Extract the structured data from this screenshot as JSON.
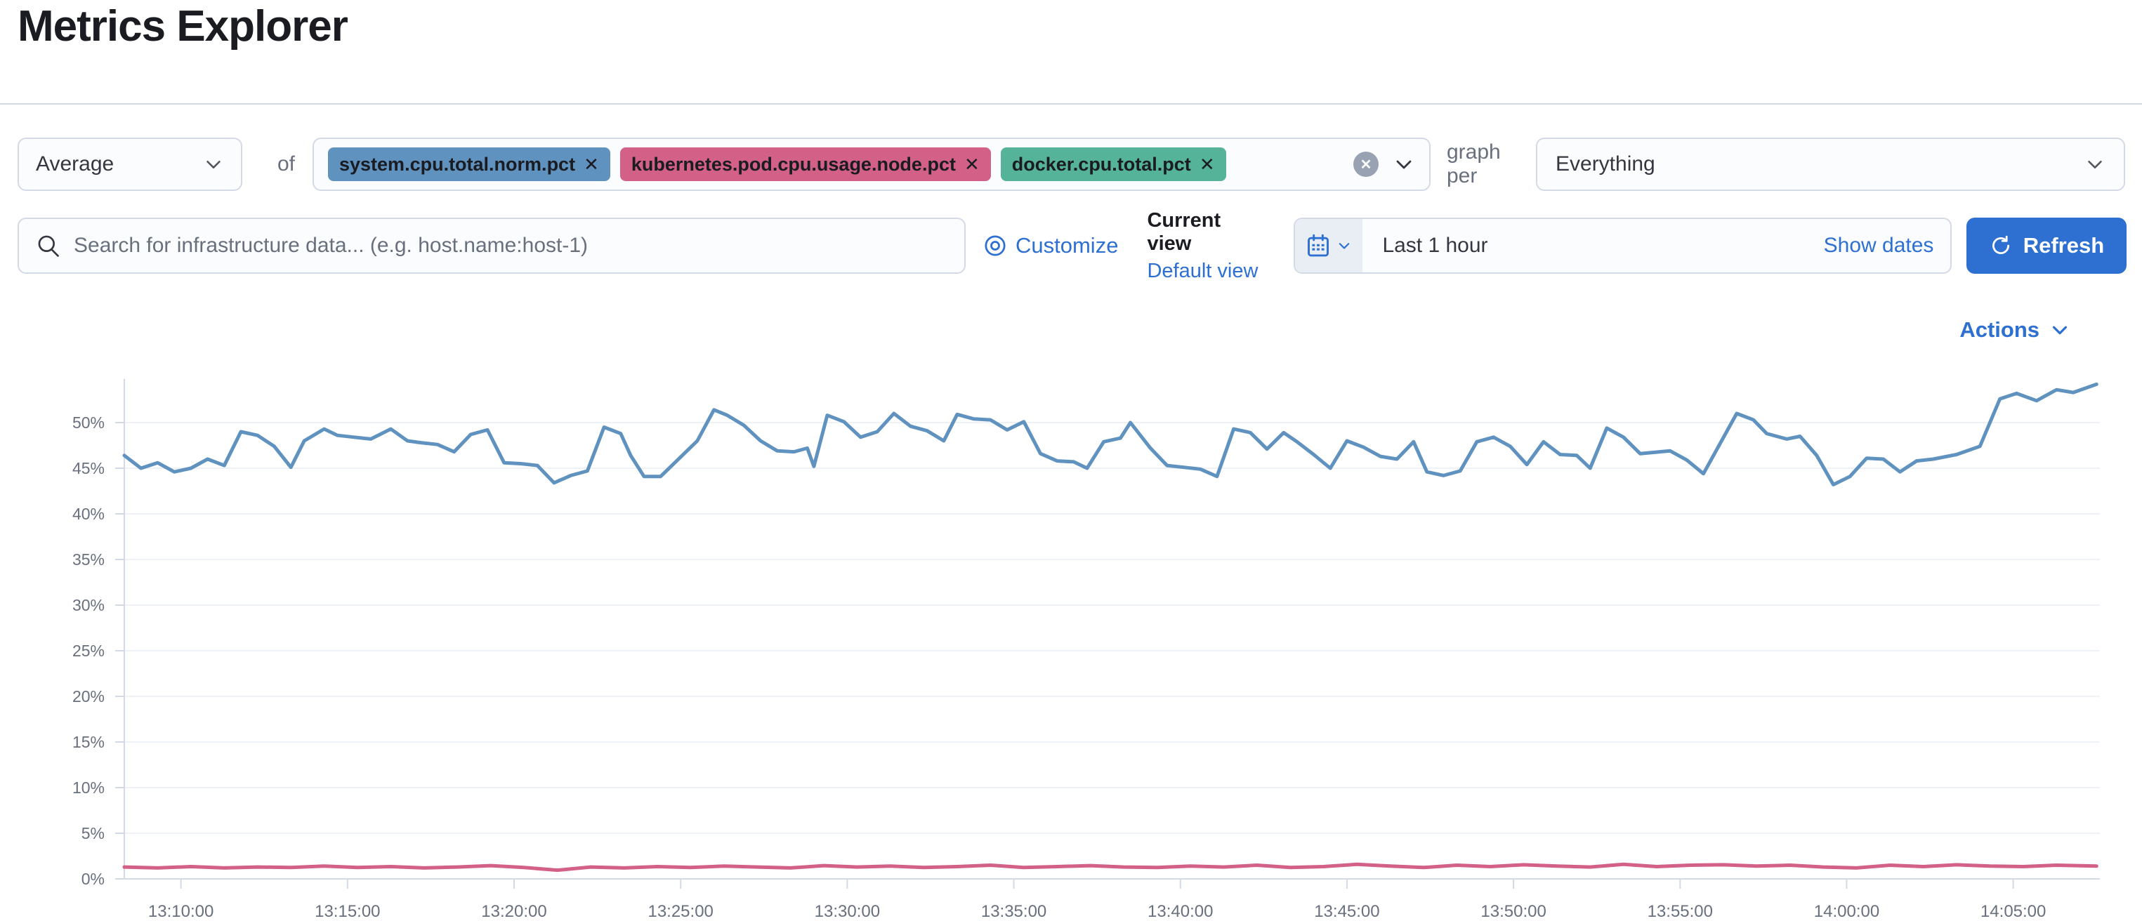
{
  "page_title": "Metrics Explorer",
  "toolbar": {
    "aggregation_value": "Average",
    "of_label": "of",
    "metric_tags": [
      {
        "label": "system.cpu.total.norm.pct",
        "color": "#6092c0"
      },
      {
        "label": "kubernetes.pod.cpu.usage.node.pct",
        "color": "#d36086"
      },
      {
        "label": "docker.cpu.total.pct",
        "color": "#54b399"
      }
    ],
    "remove_glyph": "✕",
    "clear_glyph": "✕",
    "graph_per_label": "graph per",
    "group_by_value": "Everything"
  },
  "search_bar": {
    "placeholder": "Search for infrastructure data... (e.g. host.name:host-1)",
    "customize_label": "Customize",
    "current_view_label": "Current view",
    "default_view_label": "Default view"
  },
  "time_picker": {
    "value": "Last 1 hour",
    "show_dates_label": "Show dates",
    "refresh_label": "Refresh"
  },
  "actions_label": "Actions",
  "colors": {
    "primary_blue": "#2e6fd2",
    "series_blue": "#6092c0",
    "series_pink": "#d36086",
    "tag_green": "#54b399",
    "text_dark": "#343741",
    "text_gray": "#69707d",
    "border": "#d3dae6"
  },
  "chart_data": {
    "type": "line",
    "title": "",
    "xlabel": "",
    "ylabel": "",
    "grid": true,
    "legend": "none",
    "y_axis": {
      "min": 0,
      "max": 54.8,
      "unit": "%",
      "ticks": [
        {
          "value": 0,
          "label": "0%"
        },
        {
          "value": 5,
          "label": "5%"
        },
        {
          "value": 10,
          "label": "10%"
        },
        {
          "value": 15,
          "label": "15%"
        },
        {
          "value": 20,
          "label": "20%"
        },
        {
          "value": 25,
          "label": "25%"
        },
        {
          "value": 30,
          "label": "30%"
        },
        {
          "value": 35,
          "label": "35%"
        },
        {
          "value": 40,
          "label": "40%"
        },
        {
          "value": 45,
          "label": "45%"
        },
        {
          "value": 50,
          "label": "50%"
        }
      ]
    },
    "x_axis": {
      "start_min": 8.3,
      "end_min": 67.6,
      "note": "minutes after 13:00, range ~13:08:20 to ~14:07:40",
      "ticks": [
        {
          "min": 10,
          "label": "13:10:00"
        },
        {
          "min": 15,
          "label": "13:15:00"
        },
        {
          "min": 20,
          "label": "13:20:00"
        },
        {
          "min": 25,
          "label": "13:25:00"
        },
        {
          "min": 30,
          "label": "13:30:00"
        },
        {
          "min": 35,
          "label": "13:35:00"
        },
        {
          "min": 40,
          "label": "13:40:00"
        },
        {
          "min": 45,
          "label": "13:45:00"
        },
        {
          "min": 50,
          "label": "13:50:00"
        },
        {
          "min": 55,
          "label": "13:55:00"
        },
        {
          "min": 60,
          "label": "14:00:00"
        },
        {
          "min": 65,
          "label": "14:05:00"
        }
      ]
    },
    "series": [
      {
        "name": "system.cpu.total.norm.pct",
        "color": "#6092c0",
        "points": [
          [
            8.3,
            46.4
          ],
          [
            8.8,
            45.0
          ],
          [
            9.3,
            45.6
          ],
          [
            9.8,
            44.6
          ],
          [
            10.3,
            45.0
          ],
          [
            10.8,
            46.0
          ],
          [
            11.3,
            45.3
          ],
          [
            11.8,
            49.0
          ],
          [
            12.3,
            48.6
          ],
          [
            12.8,
            47.4
          ],
          [
            13.3,
            45.1
          ],
          [
            13.7,
            48.0
          ],
          [
            14.3,
            49.3
          ],
          [
            14.7,
            48.6
          ],
          [
            15.2,
            48.4
          ],
          [
            15.7,
            48.2
          ],
          [
            16.3,
            49.3
          ],
          [
            16.8,
            48.0
          ],
          [
            17.2,
            47.8
          ],
          [
            17.7,
            47.6
          ],
          [
            18.2,
            46.8
          ],
          [
            18.7,
            48.7
          ],
          [
            19.2,
            49.2
          ],
          [
            19.7,
            45.6
          ],
          [
            20.2,
            45.5
          ],
          [
            20.7,
            45.3
          ],
          [
            21.2,
            43.4
          ],
          [
            21.7,
            44.2
          ],
          [
            22.2,
            44.7
          ],
          [
            22.7,
            49.5
          ],
          [
            23.2,
            48.8
          ],
          [
            23.5,
            46.4
          ],
          [
            23.9,
            44.1
          ],
          [
            24.4,
            44.1
          ],
          [
            25.5,
            48.0
          ],
          [
            26.0,
            51.4
          ],
          [
            26.4,
            50.8
          ],
          [
            26.9,
            49.7
          ],
          [
            27.4,
            48.0
          ],
          [
            27.9,
            46.9
          ],
          [
            28.4,
            46.8
          ],
          [
            28.8,
            47.2
          ],
          [
            29.0,
            45.2
          ],
          [
            29.4,
            50.8
          ],
          [
            29.9,
            50.1
          ],
          [
            30.4,
            48.4
          ],
          [
            30.9,
            49.0
          ],
          [
            31.4,
            51.0
          ],
          [
            31.9,
            49.6
          ],
          [
            32.4,
            49.1
          ],
          [
            32.9,
            48.0
          ],
          [
            33.3,
            50.9
          ],
          [
            33.8,
            50.4
          ],
          [
            34.3,
            50.3
          ],
          [
            34.8,
            49.2
          ],
          [
            35.3,
            50.1
          ],
          [
            35.8,
            46.6
          ],
          [
            36.3,
            45.8
          ],
          [
            36.8,
            45.7
          ],
          [
            37.2,
            45.0
          ],
          [
            37.7,
            47.9
          ],
          [
            38.2,
            48.3
          ],
          [
            38.5,
            50.0
          ],
          [
            39.1,
            47.2
          ],
          [
            39.6,
            45.3
          ],
          [
            40.1,
            45.1
          ],
          [
            40.6,
            44.9
          ],
          [
            41.1,
            44.1
          ],
          [
            41.6,
            49.3
          ],
          [
            42.1,
            48.9
          ],
          [
            42.6,
            47.1
          ],
          [
            43.1,
            48.9
          ],
          [
            43.5,
            47.9
          ],
          [
            44.0,
            46.5
          ],
          [
            44.5,
            45.0
          ],
          [
            45.0,
            48.0
          ],
          [
            45.5,
            47.3
          ],
          [
            46.0,
            46.3
          ],
          [
            46.5,
            46.0
          ],
          [
            47.0,
            47.9
          ],
          [
            47.4,
            44.6
          ],
          [
            47.9,
            44.2
          ],
          [
            48.4,
            44.7
          ],
          [
            48.9,
            47.9
          ],
          [
            49.4,
            48.4
          ],
          [
            49.9,
            47.4
          ],
          [
            50.4,
            45.4
          ],
          [
            50.9,
            47.9
          ],
          [
            51.4,
            46.5
          ],
          [
            51.9,
            46.4
          ],
          [
            52.3,
            45.0
          ],
          [
            52.8,
            49.4
          ],
          [
            53.3,
            48.4
          ],
          [
            53.8,
            46.6
          ],
          [
            54.7,
            46.9
          ],
          [
            55.2,
            45.9
          ],
          [
            55.7,
            44.4
          ],
          [
            56.7,
            51.0
          ],
          [
            57.2,
            50.3
          ],
          [
            57.6,
            48.8
          ],
          [
            58.2,
            48.2
          ],
          [
            58.6,
            48.5
          ],
          [
            59.1,
            46.4
          ],
          [
            59.6,
            43.2
          ],
          [
            60.1,
            44.1
          ],
          [
            60.6,
            46.1
          ],
          [
            61.1,
            46.0
          ],
          [
            61.6,
            44.6
          ],
          [
            62.1,
            45.8
          ],
          [
            62.6,
            46.0
          ],
          [
            63.3,
            46.5
          ],
          [
            64.0,
            47.4
          ],
          [
            64.6,
            52.6
          ],
          [
            65.1,
            53.2
          ],
          [
            65.7,
            52.4
          ],
          [
            66.3,
            53.6
          ],
          [
            66.8,
            53.3
          ],
          [
            67.5,
            54.2
          ]
        ]
      },
      {
        "name": "kubernetes.pod.cpu.usage.node.pct",
        "color": "#d36086",
        "points": [
          [
            8.3,
            1.3
          ],
          [
            9.3,
            1.2
          ],
          [
            10.3,
            1.35
          ],
          [
            11.3,
            1.2
          ],
          [
            12.3,
            1.3
          ],
          [
            13.3,
            1.25
          ],
          [
            14.3,
            1.4
          ],
          [
            15.3,
            1.25
          ],
          [
            16.3,
            1.35
          ],
          [
            17.3,
            1.2
          ],
          [
            18.3,
            1.3
          ],
          [
            19.3,
            1.45
          ],
          [
            20.3,
            1.25
          ],
          [
            21.3,
            0.95
          ],
          [
            22.3,
            1.3
          ],
          [
            23.3,
            1.2
          ],
          [
            24.3,
            1.35
          ],
          [
            25.3,
            1.25
          ],
          [
            26.3,
            1.4
          ],
          [
            27.3,
            1.3
          ],
          [
            28.3,
            1.2
          ],
          [
            29.3,
            1.45
          ],
          [
            30.3,
            1.3
          ],
          [
            31.3,
            1.4
          ],
          [
            32.3,
            1.25
          ],
          [
            33.3,
            1.35
          ],
          [
            34.3,
            1.5
          ],
          [
            35.3,
            1.25
          ],
          [
            36.3,
            1.35
          ],
          [
            37.3,
            1.45
          ],
          [
            38.3,
            1.3
          ],
          [
            39.3,
            1.25
          ],
          [
            40.3,
            1.4
          ],
          [
            41.3,
            1.3
          ],
          [
            42.3,
            1.5
          ],
          [
            43.3,
            1.25
          ],
          [
            44.3,
            1.35
          ],
          [
            45.3,
            1.6
          ],
          [
            46.3,
            1.4
          ],
          [
            47.3,
            1.25
          ],
          [
            48.3,
            1.5
          ],
          [
            49.3,
            1.35
          ],
          [
            50.3,
            1.55
          ],
          [
            51.3,
            1.4
          ],
          [
            52.3,
            1.3
          ],
          [
            53.3,
            1.6
          ],
          [
            54.3,
            1.35
          ],
          [
            55.3,
            1.5
          ],
          [
            56.3,
            1.55
          ],
          [
            57.3,
            1.4
          ],
          [
            58.3,
            1.5
          ],
          [
            59.3,
            1.3
          ],
          [
            60.3,
            1.2
          ],
          [
            61.3,
            1.5
          ],
          [
            62.3,
            1.35
          ],
          [
            63.3,
            1.55
          ],
          [
            64.3,
            1.4
          ],
          [
            65.3,
            1.35
          ],
          [
            66.3,
            1.5
          ],
          [
            67.5,
            1.4
          ]
        ]
      }
    ]
  }
}
